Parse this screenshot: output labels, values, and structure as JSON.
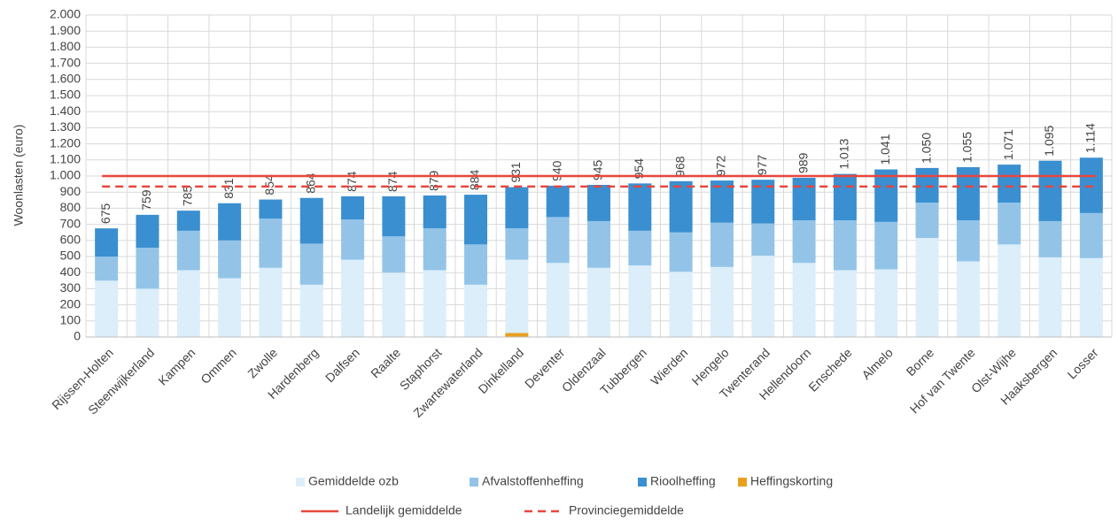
{
  "chart_data": {
    "type": "stacked_bar",
    "y_label": "Woonlasten (euro)",
    "categories": [
      "Rijssen-Holten",
      "Steenwijkerland",
      "Kampen",
      "Ommen",
      "Zwolle",
      "Hardenberg",
      "Dalfsen",
      "Raalte",
      "Staphorst",
      "Zwartewaterland",
      "Dinkelland",
      "Deventer",
      "Oldenzaal",
      "Tubbergen",
      "Wierden",
      "Hengelo",
      "Twenterand",
      "Hellendoorn",
      "Enschede",
      "Almelo",
      "Borne",
      "Hof van Twente",
      "Olst-Wijhe",
      "Haaksbergen",
      "Losser"
    ],
    "series": [
      {
        "name": "Heffingskorting",
        "color": "#e8a020",
        "values": [
          0,
          0,
          0,
          0,
          0,
          0,
          0,
          0,
          0,
          0,
          25,
          0,
          0,
          0,
          0,
          0,
          0,
          0,
          0,
          0,
          0,
          0,
          0,
          0,
          0
        ]
      },
      {
        "name": "Gemiddelde ozb",
        "color": "#dbeefa",
        "values": [
          350,
          300,
          415,
          365,
          430,
          325,
          480,
          400,
          415,
          325,
          455,
          460,
          430,
          445,
          405,
          435,
          505,
          460,
          415,
          420,
          615,
          470,
          575,
          495,
          490
        ]
      },
      {
        "name": "Afvalstoffenheffing",
        "color": "#93c4e8",
        "values": [
          150,
          255,
          245,
          235,
          305,
          255,
          250,
          225,
          260,
          250,
          195,
          285,
          290,
          215,
          245,
          275,
          200,
          265,
          310,
          295,
          220,
          255,
          260,
          225,
          280
        ]
      },
      {
        "name": "Rioolheffing",
        "color": "#3a8fd0",
        "values": [
          175,
          204,
          125,
          231,
          119,
          284,
          144,
          249,
          204,
          309,
          256,
          195,
          225,
          294,
          318,
          262,
          272,
          264,
          288,
          326,
          215,
          330,
          236,
          375,
          344
        ]
      }
    ],
    "legend_order": [
      1,
      2,
      3,
      0
    ],
    "totals": {
      "values": [
        675,
        759,
        785,
        831,
        854,
        864,
        874,
        874,
        879,
        884,
        931,
        940,
        945,
        954,
        968,
        972,
        977,
        989,
        1013,
        1041,
        1050,
        1055,
        1071,
        1095,
        1114
      ],
      "value_labels": [
        "675",
        "759",
        "785",
        "831",
        "854",
        "864",
        "874",
        "874",
        "879",
        "884",
        "931",
        "940",
        "945",
        "954",
        "968",
        "972",
        "977",
        "989",
        "1.013",
        "1.041",
        "1.050",
        "1.055",
        "1.071",
        "1.095",
        "1.114"
      ]
    },
    "lines": [
      {
        "name": "Landelijk gemiddelde",
        "color": "#e8463c",
        "value": 1000,
        "dashed": false
      },
      {
        "name": "Provinciegemiddelde",
        "color": "#e8463c",
        "value": 935,
        "dashed": true
      }
    ],
    "ylim": [
      0,
      2000
    ],
    "yticks": [
      0,
      100,
      200,
      300,
      400,
      500,
      600,
      700,
      800,
      900,
      {
        "value": 1000,
        "label": "1.000"
      },
      {
        "value": 1100,
        "label": "1.100"
      },
      {
        "value": 1200,
        "label": "1.200"
      },
      {
        "value": 1300,
        "label": "1.300"
      },
      {
        "value": 1400,
        "label": "1.400"
      },
      {
        "value": 1500,
        "label": "1.500"
      },
      {
        "value": 1600,
        "label": "1.600"
      },
      {
        "value": 1700,
        "label": "1.700"
      },
      {
        "value": 1800,
        "label": "1.800"
      },
      {
        "value": 1900,
        "label": "1.900"
      },
      {
        "value": 2000,
        "label": "2.000"
      }
    ],
    "grid": true
  }
}
